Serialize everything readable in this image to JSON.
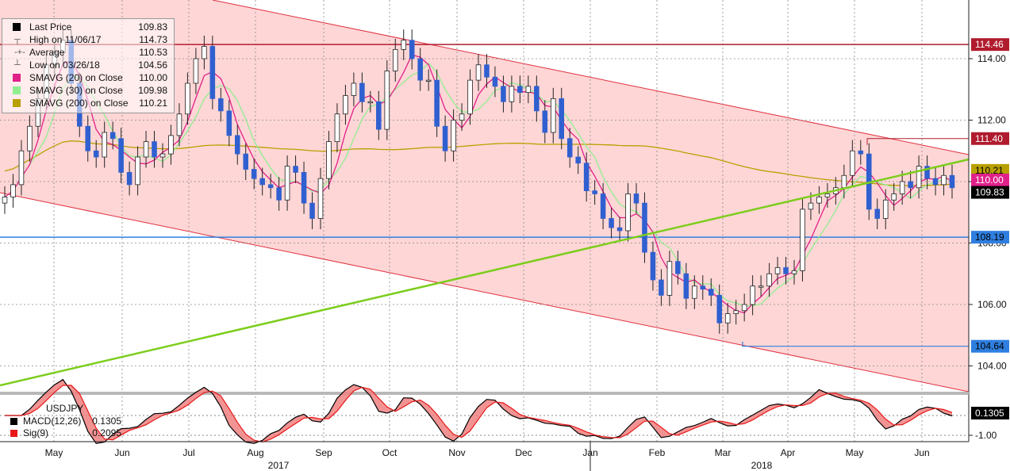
{
  "chart_data": {
    "type": "candlestick",
    "symbol": "USDJPY",
    "y_ticks": [
      "114.00",
      "112.00",
      "106.00",
      "104.00"
    ],
    "y_ticks_hidden": [
      "110.00",
      "108.00"
    ],
    "x_months": [
      "May",
      "Jun",
      "Jul",
      "Aug",
      "Sep",
      "Oct",
      "Nov",
      "Dec",
      "Jan",
      "Feb",
      "Mar",
      "Apr",
      "May",
      "Jun"
    ],
    "x_years": [
      "2017",
      "2018"
    ],
    "legend": [
      {
        "label": "Last Price",
        "value": "109.83",
        "color": "#000000",
        "marker": "box"
      },
      {
        "label": "High on 11/06/17",
        "value": "114.73",
        "color": "#777777",
        "marker": "high"
      },
      {
        "label": "Average",
        "value": "110.53",
        "color": "#777777",
        "marker": "avg"
      },
      {
        "label": "Low on 03/26/18",
        "value": "104.56",
        "color": "#777777",
        "marker": "low"
      },
      {
        "label": "SMAVG (20)  on Close",
        "value": "110.00",
        "color": "#e0218a",
        "marker": "box"
      },
      {
        "label": "SMAVG (30)  on Close",
        "value": "109.98",
        "color": "#90ee90",
        "marker": "box"
      },
      {
        "label": "SMAVG (200)  on Close",
        "value": "110.21",
        "color": "#b8a000",
        "marker": "box"
      }
    ],
    "price_badges": [
      {
        "value": "114.46",
        "bg": "#b01c2e",
        "fg": "#ffffff"
      },
      {
        "value": "111.40",
        "bg": "#b01c2e",
        "fg": "#ffffff"
      },
      {
        "value": "110.21",
        "bg": "#b8a000",
        "fg": "#000000"
      },
      {
        "value": "110.00",
        "bg": "#e0218a",
        "fg": "#ffffff"
      },
      {
        "value": "109.83",
        "bg": "#000000",
        "fg": "#ffffff"
      },
      {
        "value": "108.19",
        "bg": "#2f7fe0",
        "fg": "#000000"
      },
      {
        "value": "104.64",
        "bg": "#2f7fe0",
        "fg": "#000000"
      }
    ],
    "closes": [
      109.5,
      109.9,
      111.0,
      111.8,
      112.7,
      113.8,
      114.2,
      114.6,
      113.2,
      111.8,
      111.0,
      110.8,
      111.6,
      111.4,
      110.3,
      109.9,
      110.8,
      111.3,
      110.8,
      110.9,
      111.5,
      112.2,
      113.2,
      114.0,
      114.4,
      112.7,
      112.3,
      111.5,
      110.9,
      110.4,
      110.1,
      109.9,
      109.8,
      109.4,
      110.5,
      110.3,
      109.3,
      108.8,
      110.1,
      111.3,
      112.2,
      112.8,
      113.2,
      112.6,
      112.6,
      111.7,
      113.6,
      114.3,
      114.6,
      114.0,
      113.3,
      113.3,
      111.8,
      111.0,
      112.0,
      112.2,
      113.3,
      113.8,
      113.4,
      113.1,
      112.6,
      113.1,
      112.9,
      113.1,
      112.3,
      111.6,
      112.7,
      111.4,
      110.8,
      110.6,
      109.7,
      109.6,
      108.8,
      108.5,
      108.4,
      109.6,
      109.3,
      107.7,
      106.8,
      106.3,
      107.4,
      107.0,
      106.2,
      106.6,
      106.5,
      106.3,
      105.4,
      105.7,
      105.8,
      106.0,
      106.6,
      106.6,
      107.0,
      107.2,
      107.0,
      107.1,
      109.1,
      109.3,
      109.5,
      109.6,
      109.8,
      110.2,
      111.0,
      110.9,
      109.1,
      108.8,
      109.4,
      109.6,
      110.0,
      109.8,
      110.5,
      110.1,
      109.9,
      110.2,
      109.8
    ],
    "macd_value": "0.1305",
    "signal_value": "0.2095",
    "macd_ticks": [
      "-1.00"
    ]
  },
  "macd_legend": [
    {
      "label": "MACD(12,26)",
      "value": "0.1305",
      "color": "#000000"
    },
    {
      "label": "Sig(9)",
      "value": "0.2095",
      "color": "#e81818"
    }
  ],
  "macd_badge": {
    "value": "0.1305",
    "bg": "#000000",
    "fg": "#ffffff"
  }
}
